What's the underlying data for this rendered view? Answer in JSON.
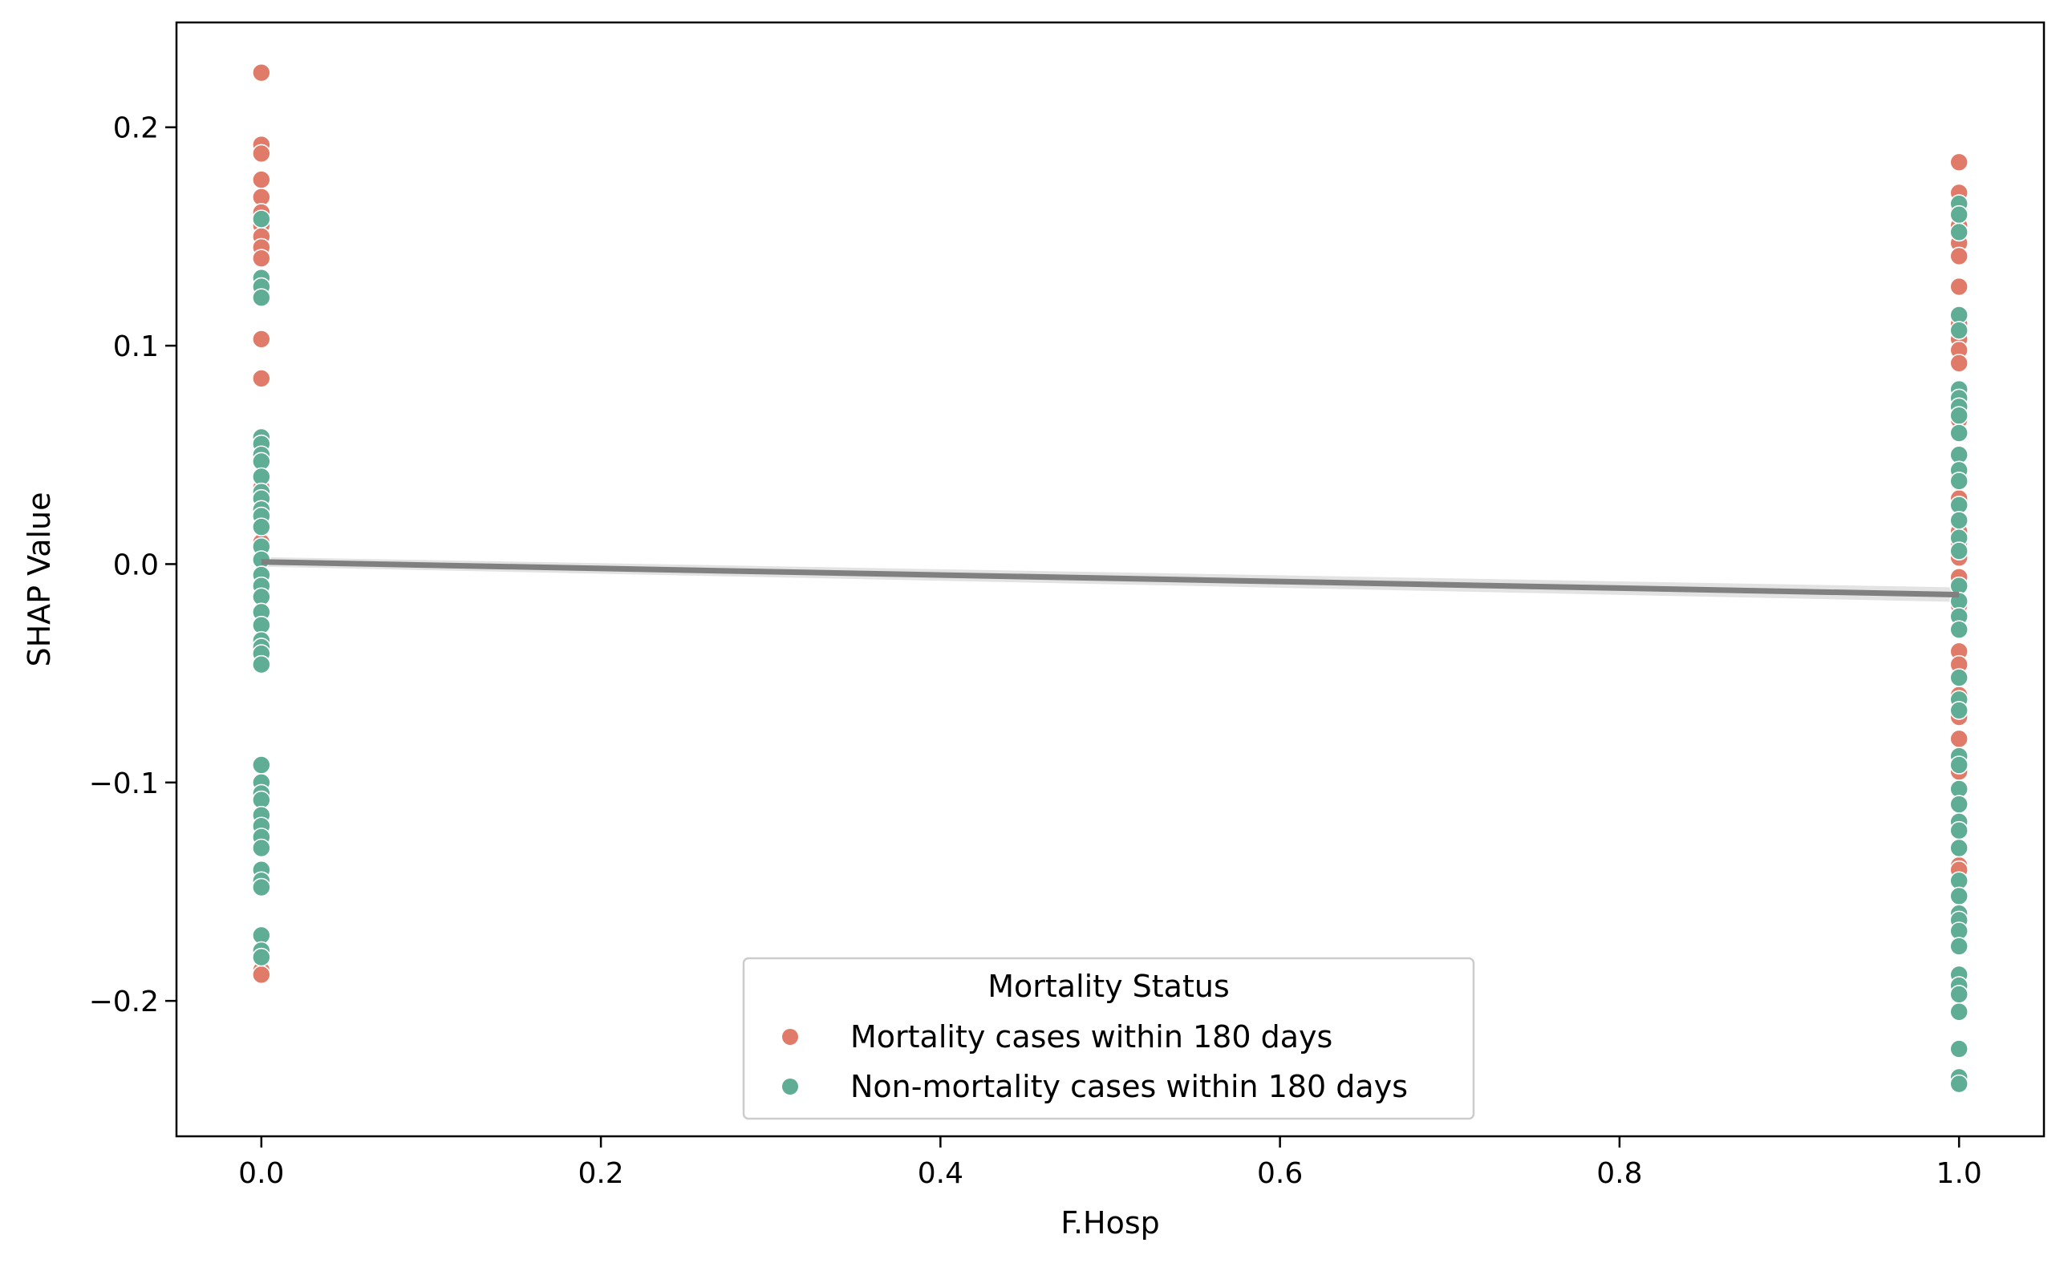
{
  "chart_data": {
    "type": "scatter",
    "title": "",
    "xlabel": "F.Hosp",
    "ylabel": "SHAP Value",
    "xlim": [
      -0.05,
      1.05
    ],
    "ylim": [
      -0.262,
      0.248
    ],
    "xticks": [
      0.0,
      0.2,
      0.4,
      0.6,
      0.8,
      1.0
    ],
    "xtick_labels": [
      "0.0",
      "0.2",
      "0.4",
      "0.6",
      "0.8",
      "1.0"
    ],
    "yticks": [
      -0.2,
      -0.1,
      0.0,
      0.1,
      0.2
    ],
    "ytick_labels": [
      "−0.2",
      "−0.1",
      "0.0",
      "0.1",
      "0.2"
    ],
    "grid": false,
    "legend": {
      "title": "Mortality Status",
      "placement": "lower center"
    },
    "series": [
      {
        "name": "Mortality cases within 180 days",
        "color": "#E07B6A",
        "points": [
          [
            0,
            0.225
          ],
          [
            0,
            0.192
          ],
          [
            0,
            0.188
          ],
          [
            0,
            0.176
          ],
          [
            0,
            0.168
          ],
          [
            0,
            0.161
          ],
          [
            0,
            0.155
          ],
          [
            0,
            0.15
          ],
          [
            0,
            0.145
          ],
          [
            0,
            0.14
          ],
          [
            0,
            0.124
          ],
          [
            0,
            0.103
          ],
          [
            0,
            0.085
          ],
          [
            0,
            0.04
          ],
          [
            0,
            0.035
          ],
          [
            0,
            0.01
          ],
          [
            0,
            -0.186
          ],
          [
            0,
            -0.188
          ],
          [
            1,
            0.184
          ],
          [
            1,
            0.17
          ],
          [
            1,
            0.163
          ],
          [
            1,
            0.155
          ],
          [
            1,
            0.147
          ],
          [
            1,
            0.141
          ],
          [
            1,
            0.127
          ],
          [
            1,
            0.11
          ],
          [
            1,
            0.103
          ],
          [
            1,
            0.098
          ],
          [
            1,
            0.092
          ],
          [
            1,
            0.066
          ],
          [
            1,
            0.04
          ],
          [
            1,
            0.03
          ],
          [
            1,
            0.015
          ],
          [
            1,
            0.01
          ],
          [
            1,
            0.003
          ],
          [
            1,
            -0.006
          ],
          [
            1,
            -0.019
          ],
          [
            1,
            -0.04
          ],
          [
            1,
            -0.046
          ],
          [
            1,
            -0.06
          ],
          [
            1,
            -0.07
          ],
          [
            1,
            -0.08
          ],
          [
            1,
            -0.095
          ],
          [
            1,
            -0.138
          ],
          [
            1,
            -0.14
          ]
        ]
      },
      {
        "name": "Non-mortality cases within 180 days",
        "color": "#5FAD94",
        "points": [
          [
            0,
            0.158
          ],
          [
            0,
            0.131
          ],
          [
            0,
            0.127
          ],
          [
            0,
            0.122
          ],
          [
            0,
            0.058
          ],
          [
            0,
            0.055
          ],
          [
            0,
            0.05
          ],
          [
            0,
            0.047
          ],
          [
            0,
            0.04
          ],
          [
            0,
            0.033
          ],
          [
            0,
            0.03
          ],
          [
            0,
            0.025
          ],
          [
            0,
            0.022
          ],
          [
            0,
            0.017
          ],
          [
            0,
            0.008
          ],
          [
            0,
            0.002
          ],
          [
            0,
            -0.005
          ],
          [
            0,
            -0.01
          ],
          [
            0,
            -0.015
          ],
          [
            0,
            -0.022
          ],
          [
            0,
            -0.028
          ],
          [
            0,
            -0.035
          ],
          [
            0,
            -0.038
          ],
          [
            0,
            -0.041
          ],
          [
            0,
            -0.046
          ],
          [
            0,
            -0.092
          ],
          [
            0,
            -0.1
          ],
          [
            0,
            -0.105
          ],
          [
            0,
            -0.108
          ],
          [
            0,
            -0.115
          ],
          [
            0,
            -0.12
          ],
          [
            0,
            -0.125
          ],
          [
            0,
            -0.13
          ],
          [
            0,
            -0.14
          ],
          [
            0,
            -0.145
          ],
          [
            0,
            -0.148
          ],
          [
            0,
            -0.17
          ],
          [
            0,
            -0.177
          ],
          [
            0,
            -0.18
          ],
          [
            1,
            0.165
          ],
          [
            1,
            0.16
          ],
          [
            1,
            0.152
          ],
          [
            1,
            0.114
          ],
          [
            1,
            0.107
          ],
          [
            1,
            0.08
          ],
          [
            1,
            0.076
          ],
          [
            1,
            0.072
          ],
          [
            1,
            0.068
          ],
          [
            1,
            0.06
          ],
          [
            1,
            0.05
          ],
          [
            1,
            0.043
          ],
          [
            1,
            0.038
          ],
          [
            1,
            0.027
          ],
          [
            1,
            0.02
          ],
          [
            1,
            0.012
          ],
          [
            1,
            0.006
          ],
          [
            1,
            -0.01
          ],
          [
            1,
            -0.017
          ],
          [
            1,
            -0.024
          ],
          [
            1,
            -0.03
          ],
          [
            1,
            -0.052
          ],
          [
            1,
            -0.062
          ],
          [
            1,
            -0.067
          ],
          [
            1,
            -0.088
          ],
          [
            1,
            -0.092
          ],
          [
            1,
            -0.103
          ],
          [
            1,
            -0.11
          ],
          [
            1,
            -0.118
          ],
          [
            1,
            -0.122
          ],
          [
            1,
            -0.13
          ],
          [
            1,
            -0.145
          ],
          [
            1,
            -0.152
          ],
          [
            1,
            -0.16
          ],
          [
            1,
            -0.163
          ],
          [
            1,
            -0.168
          ],
          [
            1,
            -0.175
          ],
          [
            1,
            -0.188
          ],
          [
            1,
            -0.193
          ],
          [
            1,
            -0.197
          ],
          [
            1,
            -0.205
          ],
          [
            1,
            -0.222
          ],
          [
            1,
            -0.235
          ],
          [
            1,
            -0.238
          ]
        ]
      }
    ],
    "trend_line": {
      "color": "#808080",
      "x": [
        0.0,
        1.0
      ],
      "y": [
        0.001,
        -0.014
      ]
    }
  }
}
